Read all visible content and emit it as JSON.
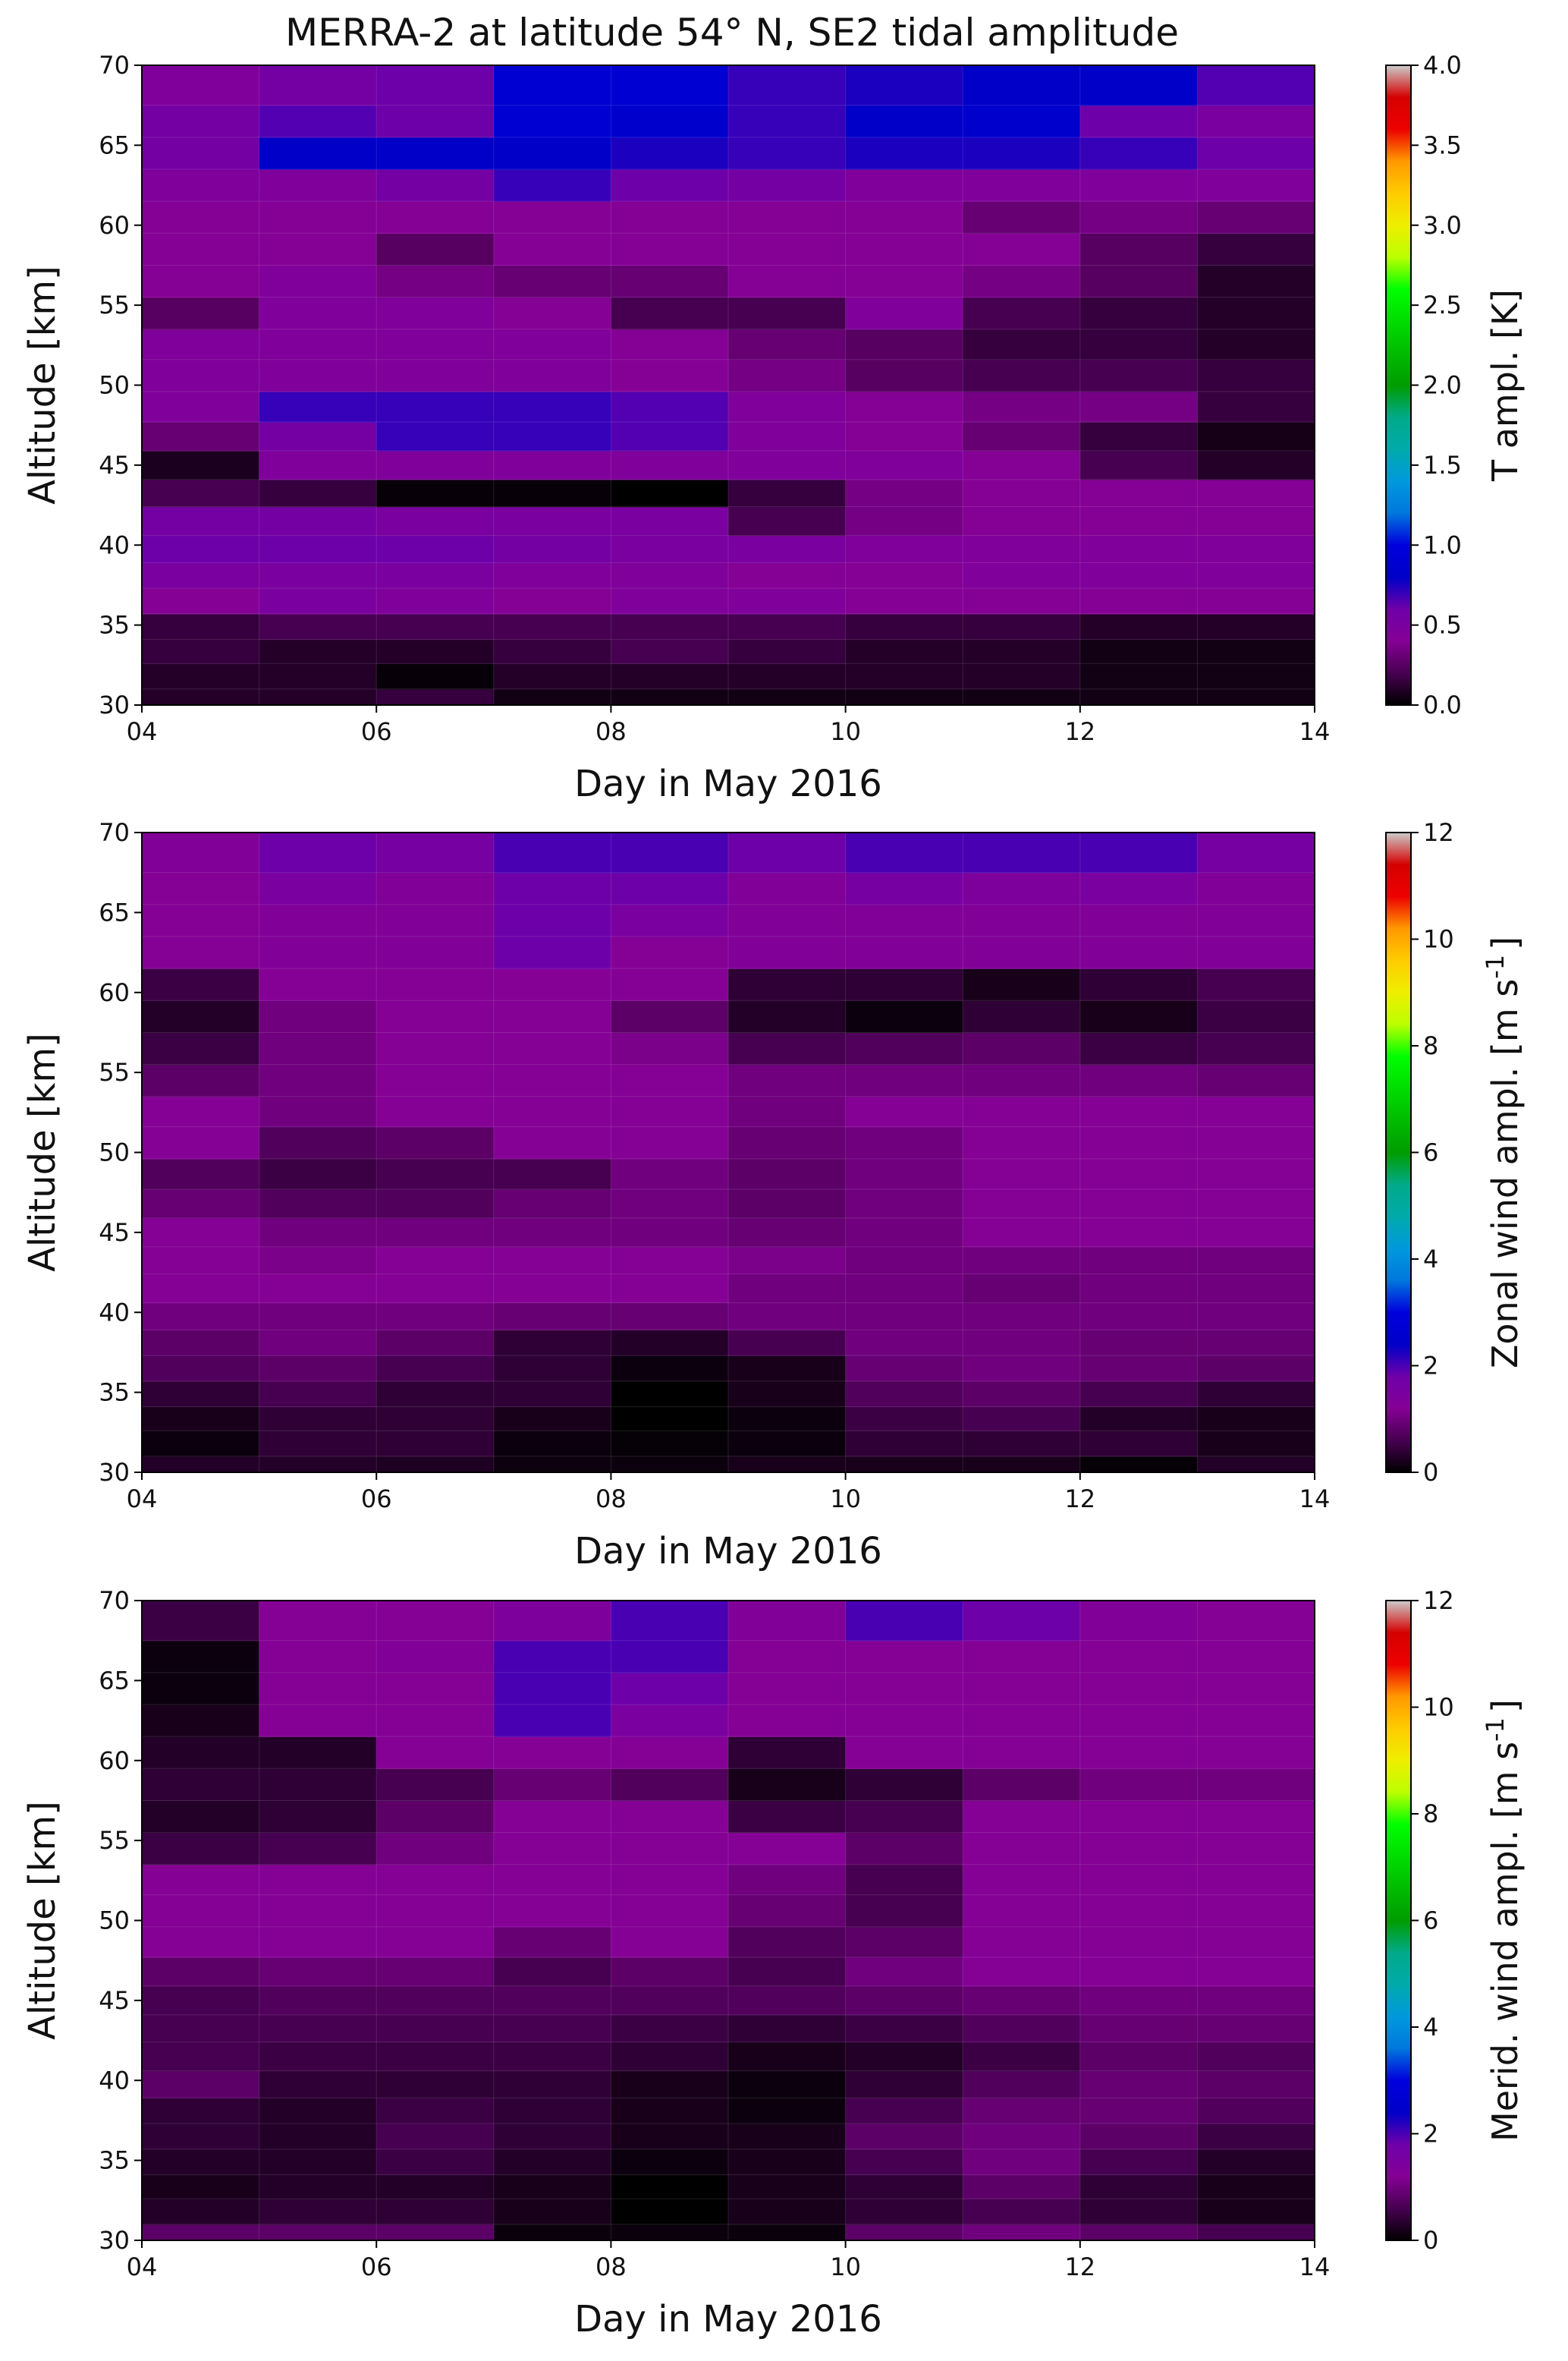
{
  "figure": {
    "title": "MERRA-2 at latitude 54° N, SE2 tidal amplitude"
  },
  "colormap": {
    "name": "nipy_spectral",
    "stops": [
      [
        0.0,
        "#000000"
      ],
      [
        0.05,
        "#470051"
      ],
      [
        0.1,
        "#850095"
      ],
      [
        0.15,
        "#6e00a9"
      ],
      [
        0.2,
        "#0000c8"
      ],
      [
        0.25,
        "#0000dd"
      ],
      [
        0.3,
        "#0077dd"
      ],
      [
        0.35,
        "#0099dd"
      ],
      [
        0.4,
        "#00aaaa"
      ],
      [
        0.45,
        "#00aa88"
      ],
      [
        0.5,
        "#009c00"
      ],
      [
        0.55,
        "#00bb00"
      ],
      [
        0.6,
        "#00dd00"
      ],
      [
        0.65,
        "#00ff00"
      ],
      [
        0.7,
        "#bbff00"
      ],
      [
        0.75,
        "#eeee00"
      ],
      [
        0.8,
        "#ffcc00"
      ],
      [
        0.85,
        "#ff9900"
      ],
      [
        0.9,
        "#ee0000"
      ],
      [
        0.95,
        "#d50000"
      ],
      [
        1.0,
        "#cccccc"
      ]
    ]
  },
  "chart_data": [
    {
      "type": "heatmap",
      "title": "MERRA-2 at latitude 54° N, SE2 tidal amplitude",
      "xlabel": "Day in May 2016",
      "ylabel": "Altitude [km]",
      "colorbar_label": "T ampl. [K]",
      "x_edges": [
        4,
        5,
        6,
        7,
        8,
        9,
        10,
        11,
        12,
        13,
        14
      ],
      "x_ticks": [
        "04",
        "06",
        "08",
        "10",
        "12",
        "14"
      ],
      "y_edges": [
        30,
        31,
        32.6,
        34.1,
        35.7,
        37.3,
        38.9,
        40.6,
        42.4,
        44.1,
        45.9,
        47.7,
        49.6,
        51.6,
        53.5,
        55.5,
        57.5,
        59.5,
        61.5,
        63.5,
        65.5,
        67.5,
        70
      ],
      "y_ticks": [
        "30",
        "35",
        "40",
        "45",
        "50",
        "55",
        "60",
        "65",
        "70"
      ],
      "ylim": [
        30,
        70
      ],
      "clim": [
        0,
        4
      ],
      "cbar_ticks": [
        "0.0",
        "0.5",
        "1.0",
        "1.5",
        "2.0",
        "2.5",
        "3.0",
        "3.5",
        "4.0"
      ],
      "values": [
        [
          0.1,
          0.1,
          0.15,
          0.05,
          0.05,
          0.05,
          0.05,
          0.05,
          0.05,
          0.05
        ],
        [
          0.1,
          0.1,
          0.02,
          0.1,
          0.1,
          0.1,
          0.1,
          0.1,
          0.05,
          0.05
        ],
        [
          0.15,
          0.1,
          0.1,
          0.15,
          0.2,
          0.15,
          0.1,
          0.1,
          0.05,
          0.05
        ],
        [
          0.15,
          0.2,
          0.2,
          0.2,
          0.2,
          0.2,
          0.15,
          0.15,
          0.1,
          0.1
        ],
        [
          0.4,
          0.5,
          0.45,
          0.4,
          0.45,
          0.45,
          0.4,
          0.4,
          0.4,
          0.4
        ],
        [
          0.5,
          0.5,
          0.5,
          0.45,
          0.45,
          0.4,
          0.4,
          0.45,
          0.45,
          0.45
        ],
        [
          0.6,
          0.6,
          0.6,
          0.55,
          0.5,
          0.5,
          0.45,
          0.45,
          0.45,
          0.45
        ],
        [
          0.55,
          0.55,
          0.5,
          0.5,
          0.5,
          0.2,
          0.35,
          0.4,
          0.4,
          0.4
        ],
        [
          0.2,
          0.15,
          0.02,
          0.02,
          0.0,
          0.15,
          0.35,
          0.4,
          0.4,
          0.4
        ],
        [
          0.08,
          0.45,
          0.45,
          0.45,
          0.45,
          0.45,
          0.45,
          0.4,
          0.2,
          0.1
        ],
        [
          0.3,
          0.55,
          0.7,
          0.7,
          0.65,
          0.45,
          0.4,
          0.3,
          0.15,
          0.06
        ],
        [
          0.45,
          0.7,
          0.7,
          0.7,
          0.65,
          0.45,
          0.4,
          0.35,
          0.35,
          0.15
        ],
        [
          0.45,
          0.45,
          0.45,
          0.45,
          0.4,
          0.35,
          0.25,
          0.2,
          0.2,
          0.15
        ],
        [
          0.45,
          0.45,
          0.45,
          0.45,
          0.4,
          0.3,
          0.25,
          0.15,
          0.15,
          0.1
        ],
        [
          0.25,
          0.45,
          0.45,
          0.4,
          0.2,
          0.2,
          0.45,
          0.2,
          0.15,
          0.1
        ],
        [
          0.4,
          0.45,
          0.35,
          0.3,
          0.3,
          0.4,
          0.4,
          0.35,
          0.25,
          0.1
        ],
        [
          0.4,
          0.4,
          0.25,
          0.4,
          0.4,
          0.4,
          0.4,
          0.4,
          0.25,
          0.15
        ],
        [
          0.4,
          0.4,
          0.4,
          0.4,
          0.4,
          0.4,
          0.4,
          0.3,
          0.35,
          0.3
        ],
        [
          0.45,
          0.45,
          0.55,
          0.7,
          0.6,
          0.55,
          0.45,
          0.45,
          0.45,
          0.45
        ],
        [
          0.55,
          0.8,
          0.8,
          0.8,
          0.75,
          0.7,
          0.75,
          0.75,
          0.7,
          0.6
        ],
        [
          0.55,
          0.65,
          0.6,
          0.9,
          0.85,
          0.7,
          0.8,
          0.85,
          0.6,
          0.5
        ],
        [
          0.45,
          0.55,
          0.6,
          0.9,
          0.9,
          0.7,
          0.75,
          0.8,
          0.8,
          0.65
        ]
      ]
    },
    {
      "type": "heatmap",
      "xlabel": "Day in May 2016",
      "ylabel": "Altitude [km]",
      "colorbar_label": "Zonal wind ampl. [m s",
      "colorbar_label_exp": "-1",
      "colorbar_label_end": "]",
      "x_edges": [
        4,
        5,
        6,
        7,
        8,
        9,
        10,
        11,
        12,
        13,
        14
      ],
      "x_ticks": [
        "04",
        "06",
        "08",
        "10",
        "12",
        "14"
      ],
      "y_edges": [
        30,
        31,
        32.6,
        34.1,
        35.7,
        37.3,
        38.9,
        40.6,
        42.4,
        44.1,
        45.9,
        47.7,
        49.6,
        51.6,
        53.5,
        55.5,
        57.5,
        59.5,
        61.5,
        63.5,
        65.5,
        67.5,
        70
      ],
      "y_ticks": [
        "30",
        "35",
        "40",
        "45",
        "50",
        "55",
        "60",
        "65",
        "70"
      ],
      "ylim": [
        30,
        70
      ],
      "clim": [
        0,
        12
      ],
      "cbar_ticks": [
        "0",
        "2",
        "4",
        "6",
        "8",
        "10",
        "12"
      ],
      "values": [
        [
          0.3,
          0.3,
          0.25,
          0.1,
          0.1,
          0.2,
          0.2,
          0.2,
          0.05,
          0.3
        ],
        [
          0.1,
          0.4,
          0.4,
          0.1,
          0.05,
          0.1,
          0.4,
          0.4,
          0.4,
          0.2
        ],
        [
          0.2,
          0.4,
          0.4,
          0.2,
          0.0,
          0.1,
          0.5,
          0.6,
          0.3,
          0.2
        ],
        [
          0.4,
          0.6,
          0.4,
          0.4,
          0.0,
          0.2,
          0.7,
          0.8,
          0.6,
          0.4
        ],
        [
          0.7,
          0.8,
          0.6,
          0.4,
          0.1,
          0.2,
          0.9,
          1.0,
          0.9,
          0.8
        ],
        [
          0.8,
          1.0,
          0.8,
          0.4,
          0.3,
          0.6,
          1.0,
          1.0,
          0.9,
          0.9
        ],
        [
          1.0,
          1.0,
          1.0,
          0.9,
          0.9,
          1.0,
          1.0,
          1.0,
          1.0,
          1.0
        ],
        [
          1.2,
          1.2,
          1.2,
          1.2,
          1.2,
          1.0,
          1.0,
          0.9,
          1.0,
          1.0
        ],
        [
          1.2,
          1.1,
          1.2,
          1.2,
          1.2,
          1.1,
          1.0,
          1.0,
          1.0,
          1.0
        ],
        [
          1.2,
          1.0,
          1.0,
          1.0,
          1.0,
          0.9,
          1.0,
          1.2,
          1.2,
          1.2
        ],
        [
          0.9,
          0.7,
          0.7,
          0.9,
          1.0,
          0.8,
          1.0,
          1.2,
          1.2,
          1.2
        ],
        [
          0.7,
          0.5,
          0.6,
          0.6,
          1.0,
          0.8,
          1.0,
          1.2,
          1.2,
          1.2
        ],
        [
          1.2,
          0.7,
          0.8,
          1.2,
          1.2,
          0.9,
          1.0,
          1.2,
          1.2,
          1.2
        ],
        [
          1.2,
          1.0,
          1.2,
          1.2,
          1.2,
          1.0,
          1.2,
          1.2,
          1.2,
          1.2
        ],
        [
          0.8,
          1.0,
          1.2,
          1.2,
          1.2,
          1.0,
          1.0,
          1.0,
          1.0,
          0.9
        ],
        [
          0.5,
          1.0,
          1.2,
          1.2,
          1.1,
          0.6,
          0.7,
          0.8,
          0.5,
          0.6
        ],
        [
          0.3,
          1.0,
          1.2,
          1.2,
          0.8,
          0.3,
          0.1,
          0.4,
          0.2,
          0.5
        ],
        [
          0.5,
          1.2,
          1.2,
          1.2,
          1.2,
          0.4,
          0.4,
          0.2,
          0.4,
          0.6
        ],
        [
          1.2,
          1.3,
          1.3,
          1.8,
          1.2,
          1.3,
          1.3,
          1.3,
          1.3,
          1.3
        ],
        [
          1.2,
          1.3,
          1.3,
          1.8,
          1.5,
          1.3,
          1.3,
          1.3,
          1.3,
          1.3
        ],
        [
          1.2,
          1.5,
          1.3,
          1.8,
          1.8,
          1.3,
          1.6,
          1.4,
          1.5,
          1.3
        ],
        [
          1.3,
          1.8,
          1.6,
          2.0,
          2.0,
          1.8,
          2.0,
          2.0,
          2.0,
          1.6
        ]
      ]
    },
    {
      "type": "heatmap",
      "xlabel": "Day in May 2016",
      "ylabel": "Altitude [km]",
      "colorbar_label": "Merid. wind ampl. [m s",
      "colorbar_label_exp": "-1",
      "colorbar_label_end": "]",
      "x_edges": [
        4,
        5,
        6,
        7,
        8,
        9,
        10,
        11,
        12,
        13,
        14
      ],
      "x_ticks": [
        "04",
        "06",
        "08",
        "10",
        "12",
        "14"
      ],
      "y_edges": [
        30,
        31,
        32.6,
        34.1,
        35.7,
        37.3,
        38.9,
        40.6,
        42.4,
        44.1,
        45.9,
        47.7,
        49.6,
        51.6,
        53.5,
        55.5,
        57.5,
        59.5,
        61.5,
        63.5,
        65.5,
        67.5,
        70
      ],
      "y_ticks": [
        "30",
        "35",
        "40",
        "45",
        "50",
        "55",
        "60",
        "65",
        "70"
      ],
      "ylim": [
        30,
        70
      ],
      "clim": [
        0,
        12
      ],
      "cbar_ticks": [
        "0",
        "2",
        "4",
        "6",
        "8",
        "10",
        "12"
      ],
      "values": [
        [
          0.8,
          0.8,
          0.8,
          0.1,
          0.1,
          0.1,
          0.8,
          1.0,
          0.8,
          0.6
        ],
        [
          0.3,
          0.4,
          0.4,
          0.2,
          0.0,
          0.2,
          0.4,
          0.6,
          0.4,
          0.2
        ],
        [
          0.2,
          0.3,
          0.3,
          0.2,
          0.0,
          0.2,
          0.4,
          0.8,
          0.4,
          0.2
        ],
        [
          0.3,
          0.3,
          0.5,
          0.3,
          0.1,
          0.2,
          0.6,
          1.0,
          0.6,
          0.3
        ],
        [
          0.4,
          0.3,
          0.6,
          0.4,
          0.2,
          0.2,
          0.8,
          1.0,
          0.8,
          0.5
        ],
        [
          0.4,
          0.3,
          0.5,
          0.4,
          0.2,
          0.1,
          0.6,
          0.9,
          0.9,
          0.7
        ],
        [
          0.8,
          0.4,
          0.4,
          0.4,
          0.2,
          0.1,
          0.4,
          0.7,
          0.9,
          0.8
        ],
        [
          0.6,
          0.5,
          0.5,
          0.5,
          0.4,
          0.2,
          0.3,
          0.5,
          0.8,
          0.7
        ],
        [
          0.6,
          0.6,
          0.6,
          0.6,
          0.5,
          0.4,
          0.5,
          0.7,
          0.9,
          0.9
        ],
        [
          0.6,
          0.7,
          0.7,
          0.7,
          0.7,
          0.7,
          0.8,
          0.9,
          1.0,
          1.0
        ],
        [
          0.8,
          0.9,
          0.9,
          0.6,
          0.8,
          0.6,
          1.0,
          1.2,
          1.2,
          1.2
        ],
        [
          1.2,
          1.2,
          1.2,
          0.9,
          1.2,
          0.7,
          0.8,
          1.2,
          1.2,
          1.2
        ],
        [
          1.2,
          1.2,
          1.2,
          1.2,
          1.2,
          0.9,
          0.6,
          1.2,
          1.2,
          1.2
        ],
        [
          1.2,
          1.2,
          1.2,
          1.2,
          1.2,
          1.0,
          0.6,
          1.2,
          1.2,
          1.2
        ],
        [
          0.5,
          0.6,
          1.0,
          1.2,
          1.2,
          1.2,
          0.8,
          1.2,
          1.2,
          1.2
        ],
        [
          0.3,
          0.4,
          0.8,
          1.2,
          1.2,
          0.5,
          0.6,
          1.2,
          1.2,
          1.2
        ],
        [
          0.4,
          0.4,
          0.6,
          0.9,
          0.7,
          0.2,
          0.4,
          0.8,
          1.0,
          1.0
        ],
        [
          0.3,
          0.3,
          1.2,
          1.2,
          1.2,
          0.4,
          1.2,
          1.2,
          1.2,
          1.2
        ],
        [
          0.2,
          1.2,
          1.2,
          2.0,
          1.5,
          1.2,
          1.2,
          1.2,
          1.2,
          1.2
        ],
        [
          0.1,
          1.2,
          1.2,
          2.0,
          1.8,
          1.2,
          1.2,
          1.2,
          1.2,
          1.2
        ],
        [
          0.1,
          1.2,
          1.3,
          2.0,
          2.0,
          1.2,
          1.2,
          1.2,
          1.2,
          1.2
        ],
        [
          0.5,
          1.2,
          1.2,
          1.4,
          2.0,
          1.3,
          2.0,
          1.8,
          1.3,
          1.2
        ]
      ]
    }
  ]
}
